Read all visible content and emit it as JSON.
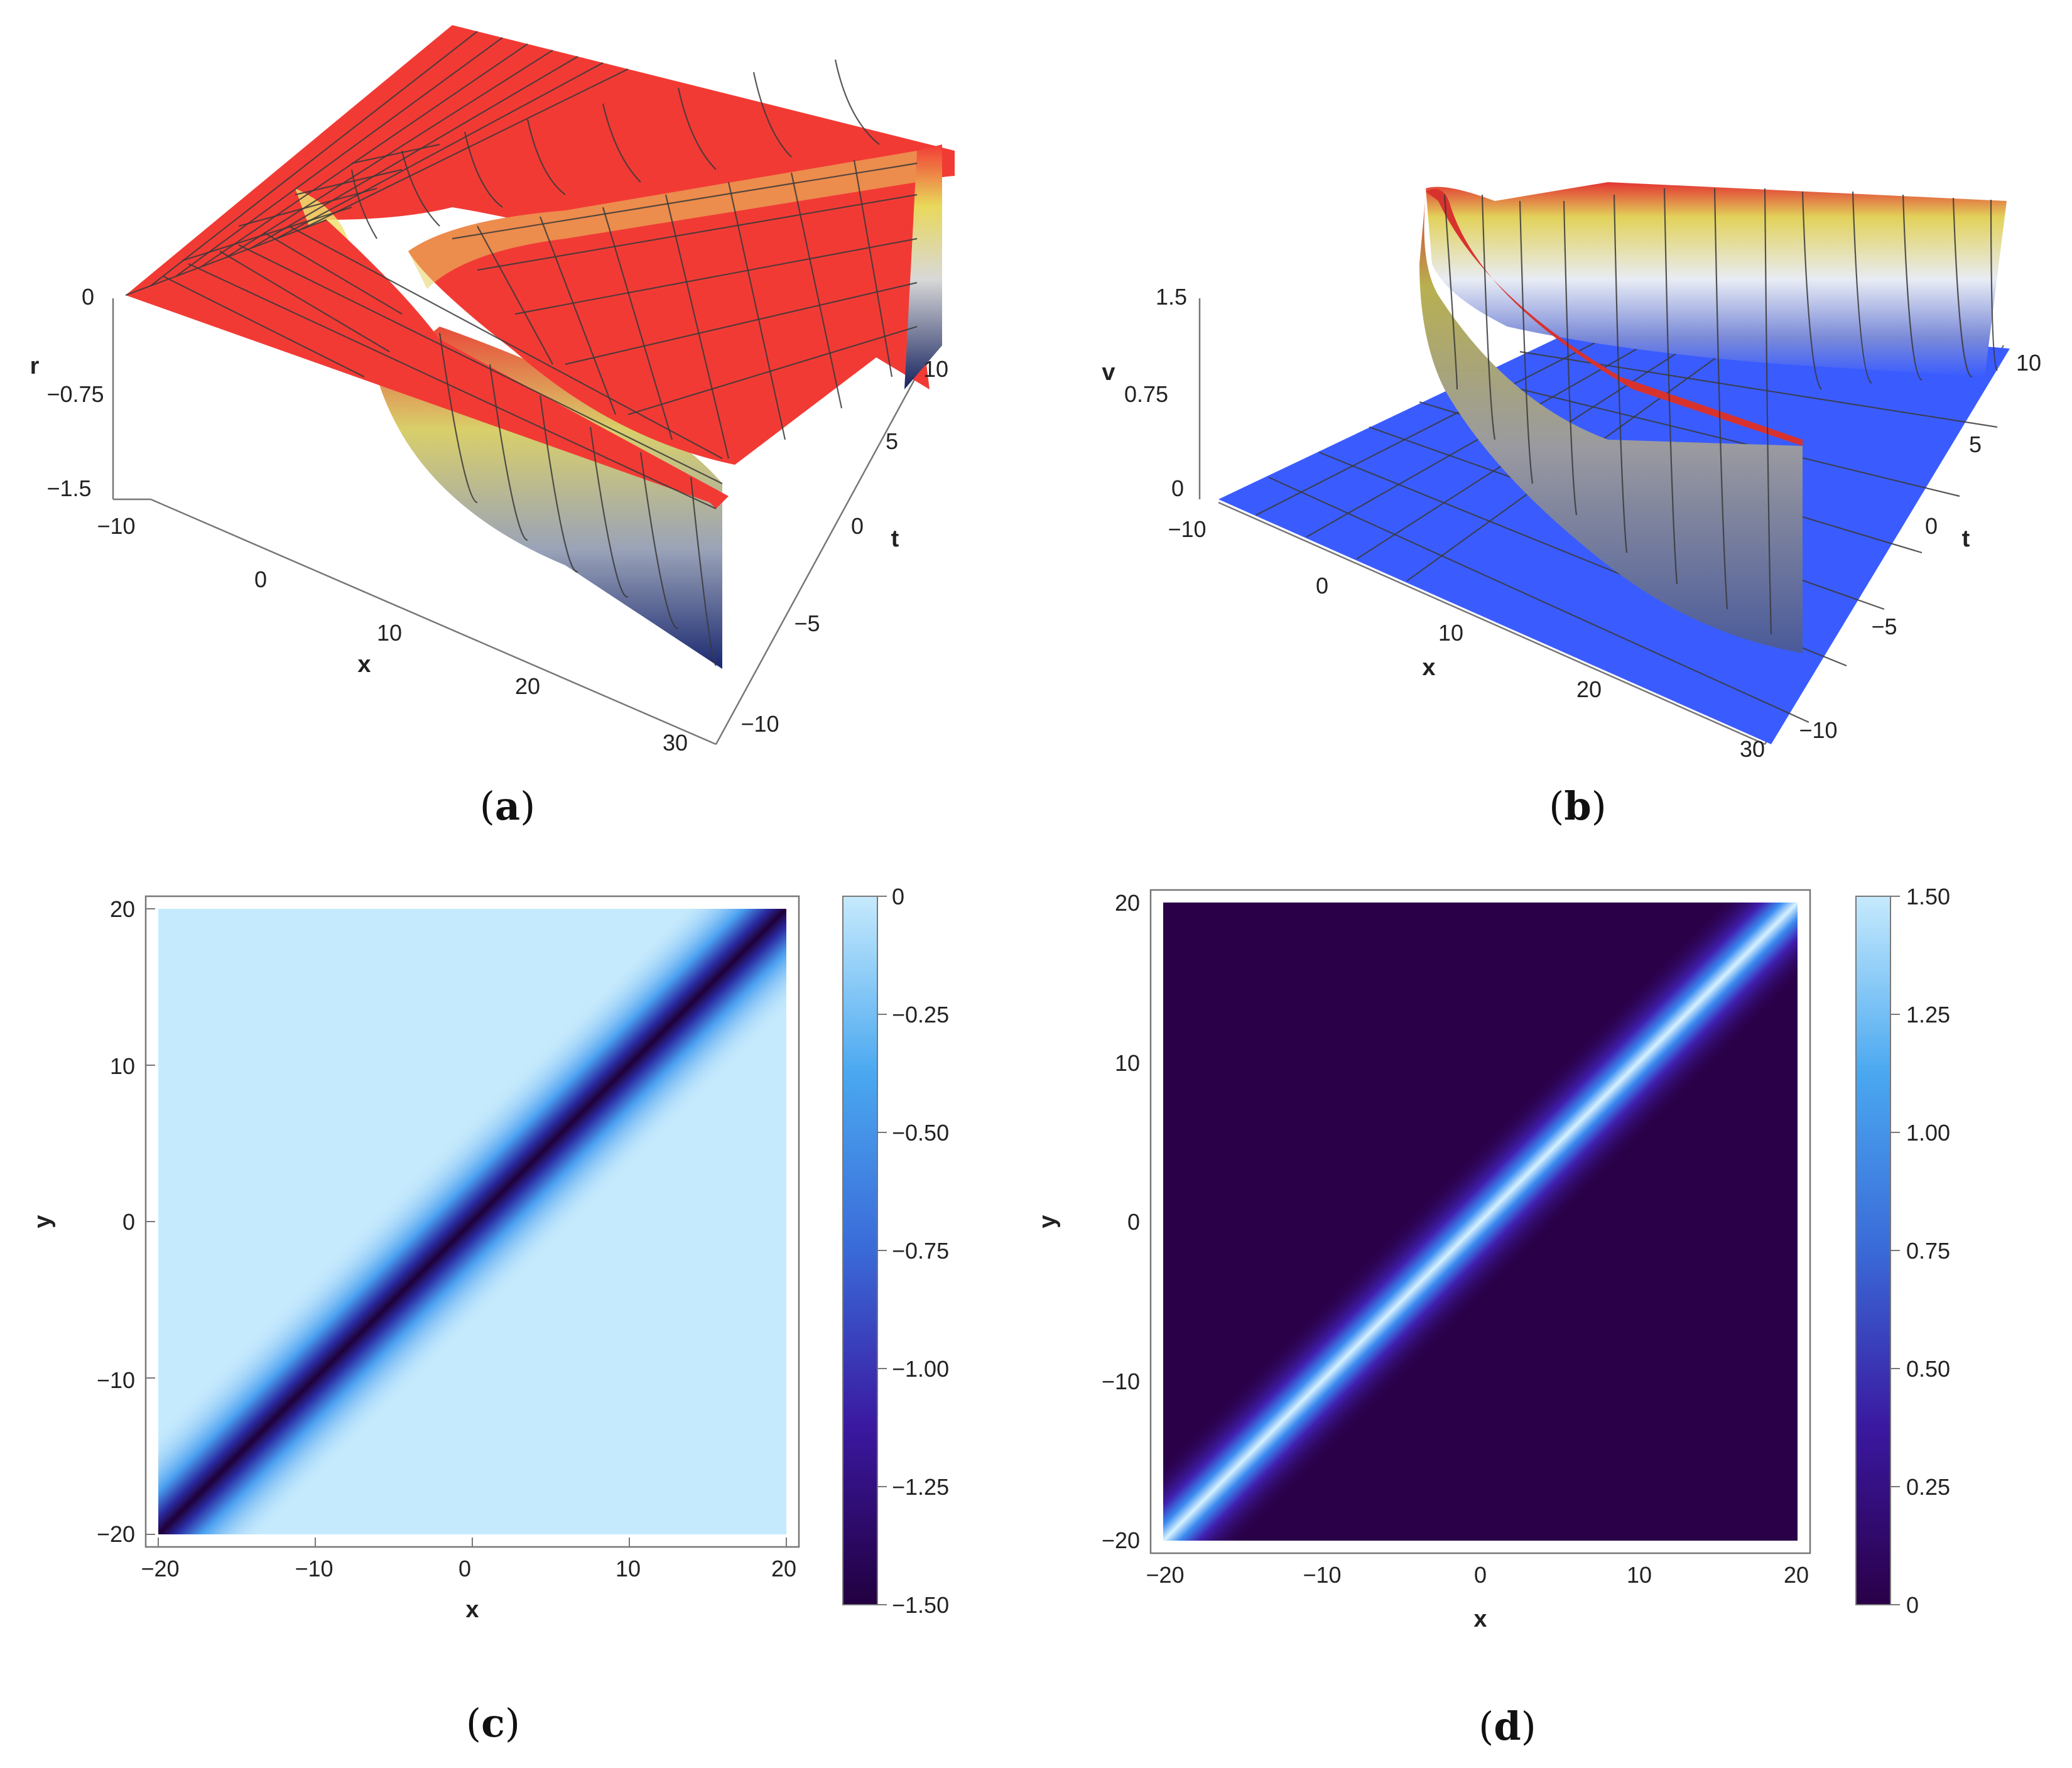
{
  "figure": {
    "panels": [
      {
        "id": "a",
        "caption": "a"
      },
      {
        "id": "b",
        "caption": "b"
      },
      {
        "id": "c",
        "caption": "c"
      },
      {
        "id": "d",
        "caption": "d"
      }
    ]
  },
  "chart_data": [
    {
      "panel": "a",
      "type": "surface3d",
      "title": "",
      "xlabel": "x",
      "ylabel": "t",
      "zlabel": "r",
      "x_ticks": [
        "−10",
        "0",
        "10",
        "20",
        "30"
      ],
      "t_ticks": [
        "−10",
        "−5",
        "0",
        "5",
        "10"
      ],
      "z_ticks": [
        "0",
        "−0.75",
        "−1.5"
      ],
      "xlim": [
        -10,
        30
      ],
      "tlim": [
        -10,
        10
      ],
      "zlim": [
        -1.5,
        0
      ],
      "description_values": {
        "plateau": 0,
        "trough_min": -1.5
      },
      "colors": {
        "top": "#f03535",
        "mid": "#e8e070",
        "low": "#1a2a6a"
      }
    },
    {
      "panel": "b",
      "type": "surface3d",
      "title": "",
      "xlabel": "x",
      "ylabel": "t",
      "zlabel": "v",
      "x_ticks": [
        "−10",
        "0",
        "10",
        "20",
        "30"
      ],
      "t_ticks": [
        "−10",
        "−5",
        "0",
        "5",
        "10"
      ],
      "z_ticks": [
        "1.5",
        "0.75",
        "0"
      ],
      "xlim": [
        -10,
        30
      ],
      "tlim": [
        -10,
        10
      ],
      "zlim": [
        0,
        1.5
      ],
      "description_values": {
        "plateau": 0,
        "peak_max": 1.5
      },
      "colors": {
        "floor": "#3a5cff",
        "ridge_top": "#e03030"
      }
    },
    {
      "panel": "c",
      "type": "heatmap",
      "title": "",
      "xlabel": "x",
      "ylabel": "y",
      "x_ticks": [
        "−20",
        "−10",
        "0",
        "10",
        "20"
      ],
      "y_ticks": [
        "20",
        "10",
        "0",
        "−10",
        "−20"
      ],
      "xlim": [
        -20,
        20
      ],
      "ylim": [
        -20,
        20
      ],
      "colorbar_ticks": [
        "0",
        "−0.25",
        "−0.50",
        "−0.75",
        "−1.00",
        "−1.25",
        "−1.50"
      ],
      "colorbar_range": [
        -1.5,
        0
      ],
      "feature": "dark diagonal soliton band along y = x, minimum −1.5",
      "colors": {
        "high": "#c6eafd",
        "mid": "#3a7fe0",
        "low": "#220040"
      }
    },
    {
      "panel": "d",
      "type": "heatmap",
      "title": "",
      "xlabel": "x",
      "ylabel": "y",
      "x_ticks": [
        "−20",
        "−10",
        "0",
        "10",
        "20"
      ],
      "y_ticks": [
        "20",
        "10",
        "0",
        "−10",
        "−20"
      ],
      "xlim": [
        -20,
        20
      ],
      "ylim": [
        -20,
        20
      ],
      "colorbar_ticks": [
        "1.50",
        "1.25",
        "1.00",
        "0.75",
        "0.50",
        "0.25",
        "0"
      ],
      "colorbar_range": [
        0,
        1.5
      ],
      "feature": "bright diagonal soliton band along y = x, maximum 1.5",
      "colors": {
        "high": "#c6eafd",
        "mid": "#3a7fe0",
        "low": "#2a0048"
      }
    }
  ]
}
